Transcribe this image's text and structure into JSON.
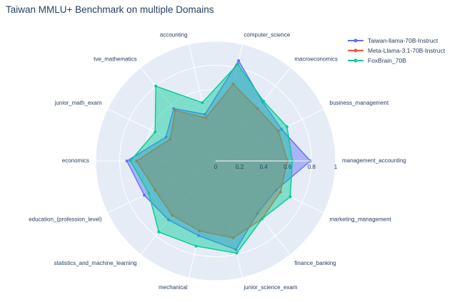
{
  "chart_data": {
    "type": "radar",
    "title": "Taiwan MMLU+ Benchmark on multiple Domains",
    "categories": [
      "management_accounting",
      "business_management",
      "macroeconomics",
      "computer_science",
      "accounting",
      "tve_mathematics",
      "junior_math_exam",
      "economics",
      "education_(profession_level)",
      "statistics_and_machine_learning",
      "mechanical",
      "junior_science_exam",
      "finance_banking",
      "marketing_management"
    ],
    "series": [
      {
        "name": "Taiwan-llama-70B-Instruct",
        "color": "#636EFA",
        "values": [
          0.79,
          0.61,
          0.63,
          0.86,
          0.4,
          0.56,
          0.46,
          0.74,
          0.66,
          0.63,
          0.64,
          0.76,
          0.56,
          0.56
        ]
      },
      {
        "name": "Meta-Llama-3.1-70B-Instruct",
        "color": "#EF553B",
        "values": [
          0.6,
          0.58,
          0.56,
          0.66,
          0.37,
          0.54,
          0.42,
          0.66,
          0.56,
          0.58,
          0.6,
          0.66,
          0.62,
          0.6
        ]
      },
      {
        "name": "FoxBrain_70B",
        "color": "#00CC96",
        "values": [
          0.64,
          0.66,
          0.64,
          0.83,
          0.5,
          0.8,
          0.56,
          0.71,
          0.62,
          0.76,
          0.73,
          0.79,
          0.62,
          0.69
        ]
      }
    ],
    "radial_ticks": [
      0,
      0.2,
      0.4,
      0.6,
      0.8,
      1
    ],
    "radial_range": [
      0,
      1
    ],
    "angular_start_deg": 0,
    "direction": "counterclockwise",
    "grid": true,
    "legend_position": "top-right",
    "background_color": "#E5ECF6",
    "grid_color": "#FFFFFF",
    "label_color": "#2a3f5f",
    "fill_opacity": 0.45
  }
}
